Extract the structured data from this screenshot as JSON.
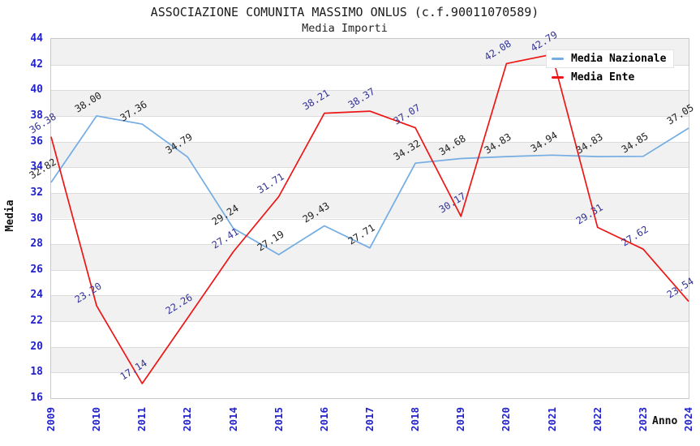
{
  "title": "ASSOCIAZIONE COMUNITA MASSIMO ONLUS (c.f.90011070589)",
  "subtitle": "Media Importi",
  "legend": {
    "position": "top-right",
    "items": [
      {
        "label": "Media Nazionale",
        "swatch_color": "#74ace4"
      },
      {
        "label": "Media Ente",
        "swatch_color": "#ee1515"
      }
    ]
  },
  "theme": {
    "tick_label_color": "#2222cc",
    "band_gray": "#f1f1f1",
    "band_white": "#ffffff",
    "gridline_color": "#dcdcdc",
    "plot_border_color": "#c9c9c9"
  },
  "chart_data": {
    "type": "line",
    "title": "ASSOCIAZIONE COMUNITA MASSIMO ONLUS (c.f.90011070589)",
    "subtitle": "Media Importi",
    "xlabel": "Anno",
    "ylabel": "Media",
    "categories": [
      "2009",
      "2010",
      "2011",
      "2012",
      "2014",
      "2015",
      "2016",
      "2017",
      "2018",
      "2019",
      "2020",
      "2021",
      "2022",
      "2023",
      "2024"
    ],
    "series": [
      {
        "name": "Media Nazionale",
        "color": "#74ace4",
        "label_color": "#222222",
        "values": [
          32.82,
          38.0,
          37.36,
          34.79,
          29.24,
          27.19,
          29.43,
          27.71,
          34.32,
          34.68,
          34.83,
          34.94,
          34.83,
          34.85,
          37.05
        ]
      },
      {
        "name": "Media Ente",
        "color": "#ee1515",
        "label_color": "#333399",
        "values": [
          36.38,
          23.2,
          17.14,
          22.26,
          27.41,
          31.71,
          38.21,
          38.37,
          37.07,
          30.17,
          42.08,
          42.79,
          29.31,
          27.62,
          23.54
        ]
      }
    ],
    "ylim": [
      16,
      44
    ],
    "ytick_step": 2,
    "grid": true,
    "band_fill": "alternating-horizontal",
    "legend_position": "top-right",
    "value_labels": "two-decimals, rotated"
  }
}
